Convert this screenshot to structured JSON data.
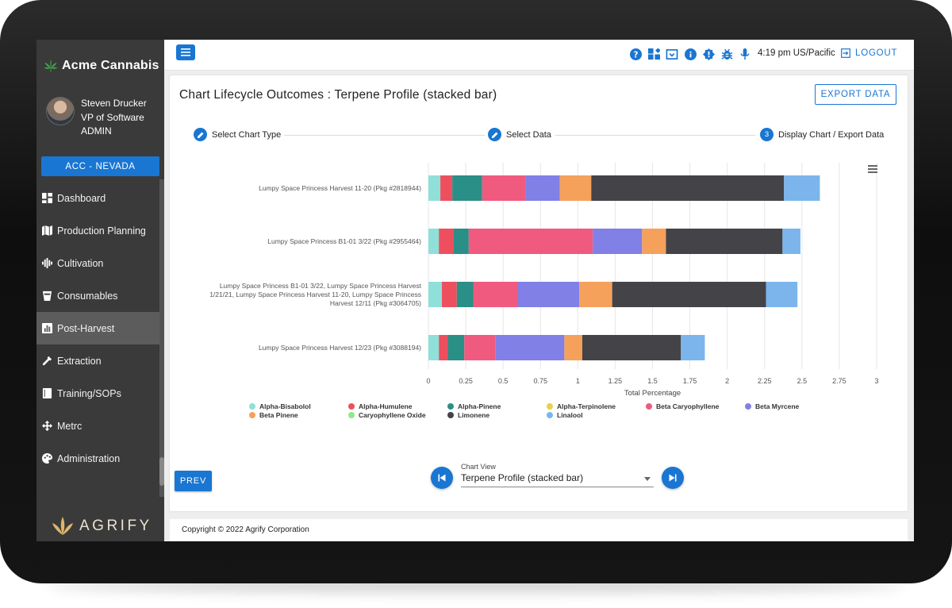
{
  "brand": {
    "name": "Acme Cannabis"
  },
  "user": {
    "name": "Steven Drucker",
    "title": "VP of Software",
    "role": "ADMIN"
  },
  "location_button": "ACC - NEVADA",
  "nav": [
    {
      "label": "Dashboard",
      "icon": "dashboard-icon"
    },
    {
      "label": "Production Planning",
      "icon": "map-icon"
    },
    {
      "label": "Cultivation",
      "icon": "equalizer-icon"
    },
    {
      "label": "Consumables",
      "icon": "cup-icon"
    },
    {
      "label": "Post-Harvest",
      "icon": "chart-icon",
      "active": true
    },
    {
      "label": "Extraction",
      "icon": "dropper-icon"
    },
    {
      "label": "Training/SOPs",
      "icon": "book-icon"
    },
    {
      "label": "Metrc",
      "icon": "move-icon"
    },
    {
      "label": "Administration",
      "icon": "palette-icon"
    }
  ],
  "footer_brand": "AGRIFY",
  "topbar": {
    "time": "4:19 pm US/Pacific",
    "logout": "LOGOUT",
    "icons": [
      "help-icon",
      "widgets-icon",
      "tray-icon",
      "info-icon",
      "badge-icon",
      "bug-icon",
      "microphone-icon"
    ]
  },
  "page": {
    "title": "Chart Lifecycle Outcomes : Terpene Profile (stacked bar)",
    "export_label": "EXPORT DATA",
    "steps": [
      {
        "label": "Select Chart Type",
        "state": "done"
      },
      {
        "label": "Select Data",
        "state": "done"
      },
      {
        "number": "3",
        "label": "Display Chart / Export Data",
        "state": "active"
      }
    ],
    "prev_label": "PREV",
    "chart_view": {
      "label": "Chart View",
      "value": "Terpene Profile (stacked bar)"
    }
  },
  "copyright": "Copyright © 2022 Agrify Corporation",
  "colors": {
    "accent": "#1976d2",
    "sidebar": "#3a3a3a"
  },
  "chart_data": {
    "type": "bar",
    "orientation": "horizontal",
    "stacked": true,
    "categories": [
      [
        "Lumpy Space Princess Harvest 11-20 (Pkg #2818944)"
      ],
      [
        "Lumpy Space Princess B1-01 3/22 (Pkg #2955464)"
      ],
      [
        "Lumpy Space Princess B1-01 3/22, Lumpy Space Princess Harvest",
        "1/21/21, Lumpy Space Princess Harvest 11-20, Lumpy Space Princess",
        "Harvest 12/11 (Pkg #3064705)"
      ],
      [
        "Lumpy Space Princess Harvest 12/23 (Pkg #3088194)"
      ]
    ],
    "xlabel": "Total Percentage",
    "xlim": [
      0,
      3
    ],
    "xticks": [
      "0",
      "0.25",
      "0.5",
      "0.75",
      "1",
      "1.25",
      "1.5",
      "1.75",
      "2",
      "2.25",
      "2.5",
      "2.75",
      "3"
    ],
    "grid": true,
    "legend": "bottom",
    "series": [
      {
        "name": "Alpha-Bisabolol",
        "color": "#8fe0d8",
        "values": [
          0.08,
          0.07,
          0.09,
          0.07
        ]
      },
      {
        "name": "Alpha-Humulene",
        "color": "#ee4f5f",
        "values": [
          0.08,
          0.1,
          0.1,
          0.06
        ]
      },
      {
        "name": "Alpha-Pinene",
        "color": "#2a8f86",
        "values": [
          0.2,
          0.1,
          0.11,
          0.11
        ]
      },
      {
        "name": "Alpha-Terpinolene",
        "color": "#e3d24c",
        "values": [
          0,
          0,
          0,
          0
        ]
      },
      {
        "name": "Beta Caryophyllene",
        "color": "#f05a7e",
        "values": [
          0.29,
          0.83,
          0.3,
          0.21
        ]
      },
      {
        "name": "Beta Myrcene",
        "color": "#8080e6",
        "values": [
          0.23,
          0.33,
          0.41,
          0.46
        ]
      },
      {
        "name": "Beta Pinene",
        "color": "#f5a15c",
        "values": [
          0.21,
          0.16,
          0.22,
          0.12
        ]
      },
      {
        "name": "Caryophyllene Oxide",
        "color": "#8de98a",
        "values": [
          0,
          0,
          0,
          0
        ]
      },
      {
        "name": "Limonene",
        "color": "#434348",
        "values": [
          1.29,
          0.78,
          1.03,
          0.66
        ]
      },
      {
        "name": "Linalool",
        "color": "#7cb5ec",
        "values": [
          0.24,
          0.12,
          0.21,
          0.16
        ]
      }
    ]
  }
}
